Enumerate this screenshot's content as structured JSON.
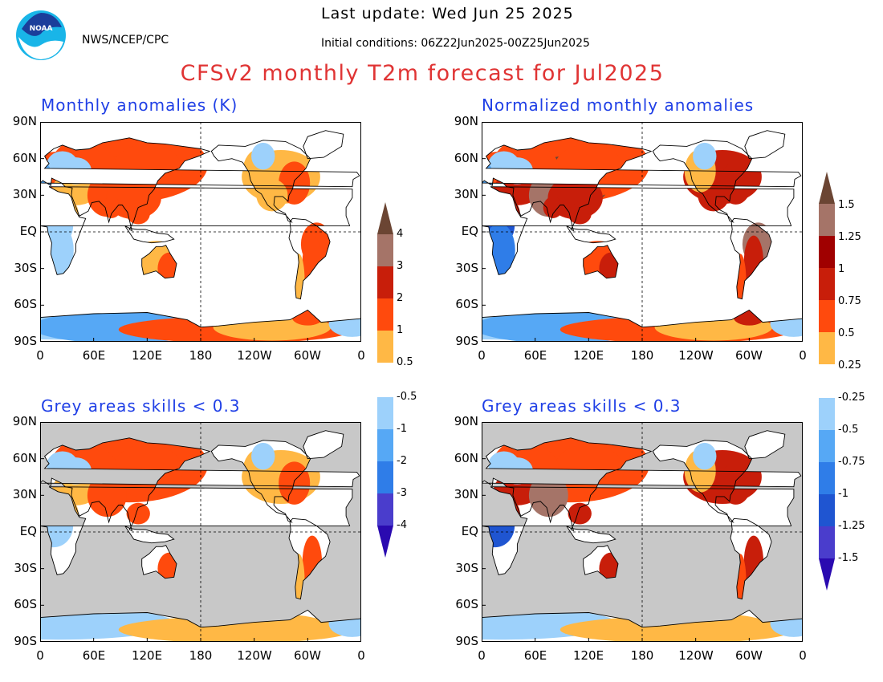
{
  "header": {
    "last_update": "Last update: Wed Jun 25 2025",
    "agency": "NWS/NCEP/CPC",
    "initial_conditions": "Initial conditions: 06Z22Jun2025-00Z25Jun2025",
    "title": "CFSv2 monthly T2m forecast for Jul2025",
    "logo_text": "NOAA"
  },
  "axes": {
    "lat_labels": [
      "90N",
      "60N",
      "30N",
      "EQ",
      "30S",
      "60S",
      "90S"
    ],
    "lon_labels": [
      "0",
      "60E",
      "120E",
      "180",
      "120W",
      "60W",
      "0"
    ]
  },
  "panels": [
    {
      "id": "anomalies",
      "title": "Monthly anomalies (K)",
      "masked": false
    },
    {
      "id": "normalized",
      "title": "Normalized monthly anomalies",
      "masked": false
    },
    {
      "id": "anomalies-skill",
      "title": "Grey areas skills < 0.3",
      "masked": true
    },
    {
      "id": "normalized-skill",
      "title": "Grey areas skills < 0.3",
      "masked": true
    }
  ],
  "colorbar_left": {
    "labels_upper": [
      "4",
      "3",
      "2",
      "1",
      "0.5"
    ],
    "labels_lower": [
      "-0.5",
      "-1",
      "-2",
      "-3",
      "-4"
    ]
  },
  "colorbar_right": {
    "labels_upper": [
      "1.5",
      "1.25",
      "1",
      "0.75",
      "0.5",
      "0.25"
    ],
    "labels_lower": [
      "-0.25",
      "-0.5",
      "-0.75",
      "-1",
      "-1.25",
      "-1.5"
    ]
  },
  "colors": {
    "title_red": "#e03434",
    "panel_title_blue": "#1f3fe6",
    "warm": [
      "#ffb845",
      "#ff4a0d",
      "#c81e0a",
      "#a00000",
      "#a57468",
      "#6b4533"
    ],
    "cool": [
      "#9dd1fb",
      "#56a8f5",
      "#2f7de8",
      "#1f55d1",
      "#4a3dcc",
      "#2a0ab0"
    ],
    "mask_grey": "#c8c8c8"
  }
}
